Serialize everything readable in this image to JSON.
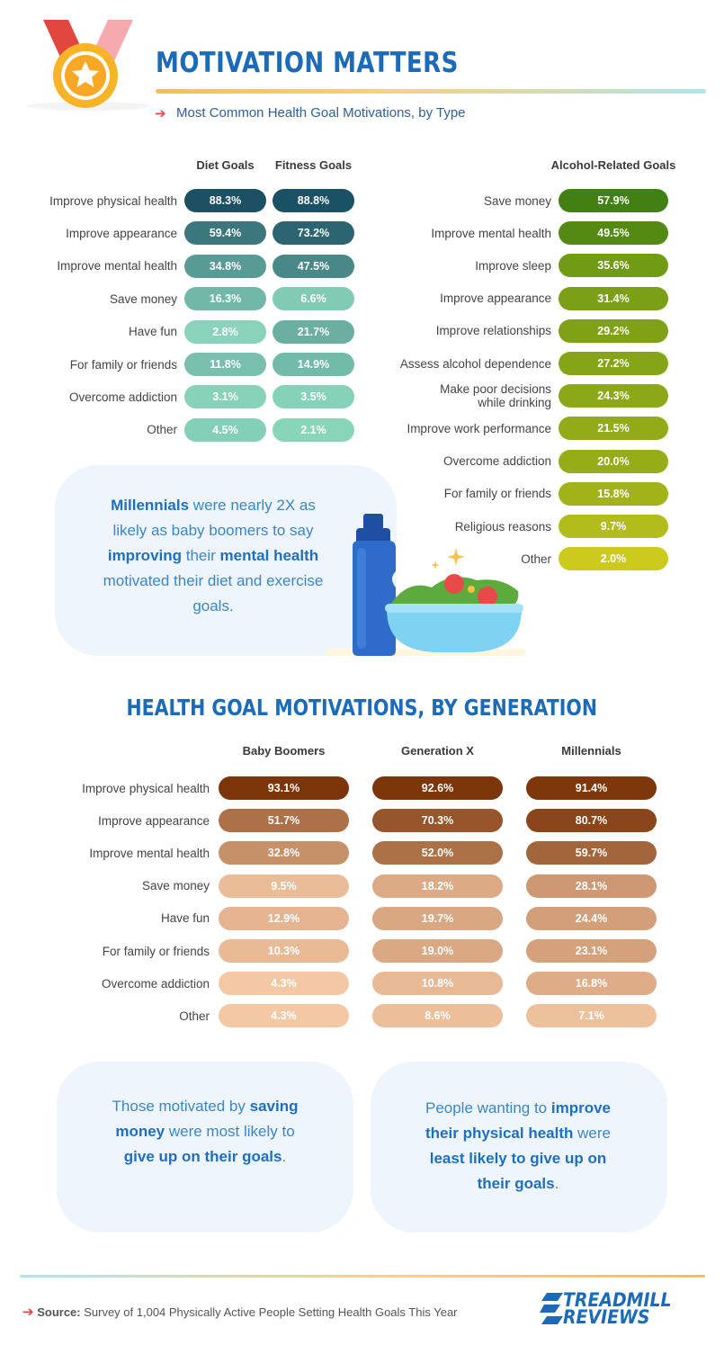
{
  "header": {
    "title": "MOTIVATION MATTERS",
    "subtitle": "Most Common Health Goal Motivations, by Type",
    "arrow": "➔"
  },
  "chart_data": [
    {
      "type": "table",
      "columns": [
        "Diet Goals",
        "Fitness Goals"
      ],
      "rows": [
        {
          "label": "Improve physical health",
          "values": [
            "88.3%",
            "88.8%"
          ]
        },
        {
          "label": "Improve appearance",
          "values": [
            "59.4%",
            "73.2%"
          ]
        },
        {
          "label": "Improve mental health",
          "values": [
            "34.8%",
            "47.5%"
          ]
        },
        {
          "label": "Save money",
          "values": [
            "16.3%",
            "6.6%"
          ]
        },
        {
          "label": "Have fun",
          "values": [
            "2.8%",
            "21.7%"
          ]
        },
        {
          "label": "For family or friends",
          "values": [
            "11.8%",
            "14.9%"
          ]
        },
        {
          "label": "Overcome addiction",
          "values": [
            "3.1%",
            "3.5%"
          ]
        },
        {
          "label": "Other",
          "values": [
            "4.5%",
            "2.1%"
          ]
        }
      ]
    },
    {
      "type": "table",
      "columns": [
        "Alcohol-Related Goals"
      ],
      "rows": [
        {
          "label": "Save money",
          "values": [
            "57.9%"
          ]
        },
        {
          "label": "Improve mental health",
          "values": [
            "49.5%"
          ]
        },
        {
          "label": "Improve sleep",
          "values": [
            "35.6%"
          ]
        },
        {
          "label": "Improve appearance",
          "values": [
            "31.4%"
          ]
        },
        {
          "label": "Improve relationships",
          "values": [
            "29.2%"
          ]
        },
        {
          "label": "Assess alcohol dependence",
          "values": [
            "27.2%"
          ]
        },
        {
          "label": "Make poor decisions\nwhile drinking",
          "values": [
            "24.3%"
          ]
        },
        {
          "label": "Improve work performance",
          "values": [
            "21.5%"
          ]
        },
        {
          "label": "Overcome addiction",
          "values": [
            "20.0%"
          ]
        },
        {
          "label": "For family or friends",
          "values": [
            "15.8%"
          ]
        },
        {
          "label": "Religious reasons",
          "values": [
            "9.7%"
          ]
        },
        {
          "label": "Other",
          "values": [
            "2.0%"
          ]
        }
      ]
    },
    {
      "type": "table",
      "title": "HEALTH GOAL MOTIVATIONS, BY GENERATION",
      "columns": [
        "Baby Boomers",
        "Generation X",
        "Millennials"
      ],
      "rows": [
        {
          "label": "Improve physical health",
          "values": [
            "93.1%",
            "92.6%",
            "91.4%"
          ]
        },
        {
          "label": "Improve appearance",
          "values": [
            "51.7%",
            "70.3%",
            "80.7%"
          ]
        },
        {
          "label": "Improve mental health",
          "values": [
            "32.8%",
            "52.0%",
            "59.7%"
          ]
        },
        {
          "label": "Save money",
          "values": [
            "9.5%",
            "18.2%",
            "28.1%"
          ]
        },
        {
          "label": "Have fun",
          "values": [
            "12.9%",
            "19.7%",
            "24.4%"
          ]
        },
        {
          "label": "For family or friends",
          "values": [
            "10.3%",
            "19.0%",
            "23.1%"
          ]
        },
        {
          "label": "Overcome addiction",
          "values": [
            "4.3%",
            "10.8%",
            "16.8%"
          ]
        },
        {
          "label": "Other",
          "values": [
            "4.3%",
            "8.6%",
            "7.1%"
          ]
        }
      ]
    }
  ],
  "callouts": {
    "millennials": [
      {
        "t": "Millennials",
        "b": true
      },
      {
        "t": " were nearly 2X as likely as baby boomers to say ",
        "b": false
      },
      {
        "t": "improving",
        "b": true
      },
      {
        "t": " their ",
        "b": false
      },
      {
        "t": "mental health",
        "b": true
      },
      {
        "t": " motivated their diet and exercise goals.",
        "b": false
      }
    ],
    "saving": [
      {
        "t": "Those motivated by ",
        "b": false
      },
      {
        "t": "saving money",
        "b": true
      },
      {
        "t": " were most likely to ",
        "b": false
      },
      {
        "t": "give up on their goals",
        "b": true
      },
      {
        "t": ".",
        "b": false
      }
    ],
    "physical": [
      {
        "t": "People wanting to ",
        "b": false
      },
      {
        "t": "improve their physical health",
        "b": true
      },
      {
        "t": " were ",
        "b": false
      },
      {
        "t": "least likely to give up on their goals",
        "b": true
      },
      {
        "t": ".",
        "b": false
      }
    ]
  },
  "footer": {
    "source_label": "Source:",
    "source_text": " Survey of 1,004 Physically Active People Setting Health Goals This Year",
    "brand_line1": "TREADMILL",
    "brand_line2": "REVIEWS"
  },
  "colors": {
    "title_blue": "#1b6bb8",
    "diet_fitness_scale": [
      "#8fdcbf",
      "#1a4f63"
    ],
    "alcohol_scale": [
      "#d6cf1c",
      "#3d7e12"
    ],
    "generation_scale": [
      "#ffd6b3",
      "#7a3206"
    ]
  }
}
